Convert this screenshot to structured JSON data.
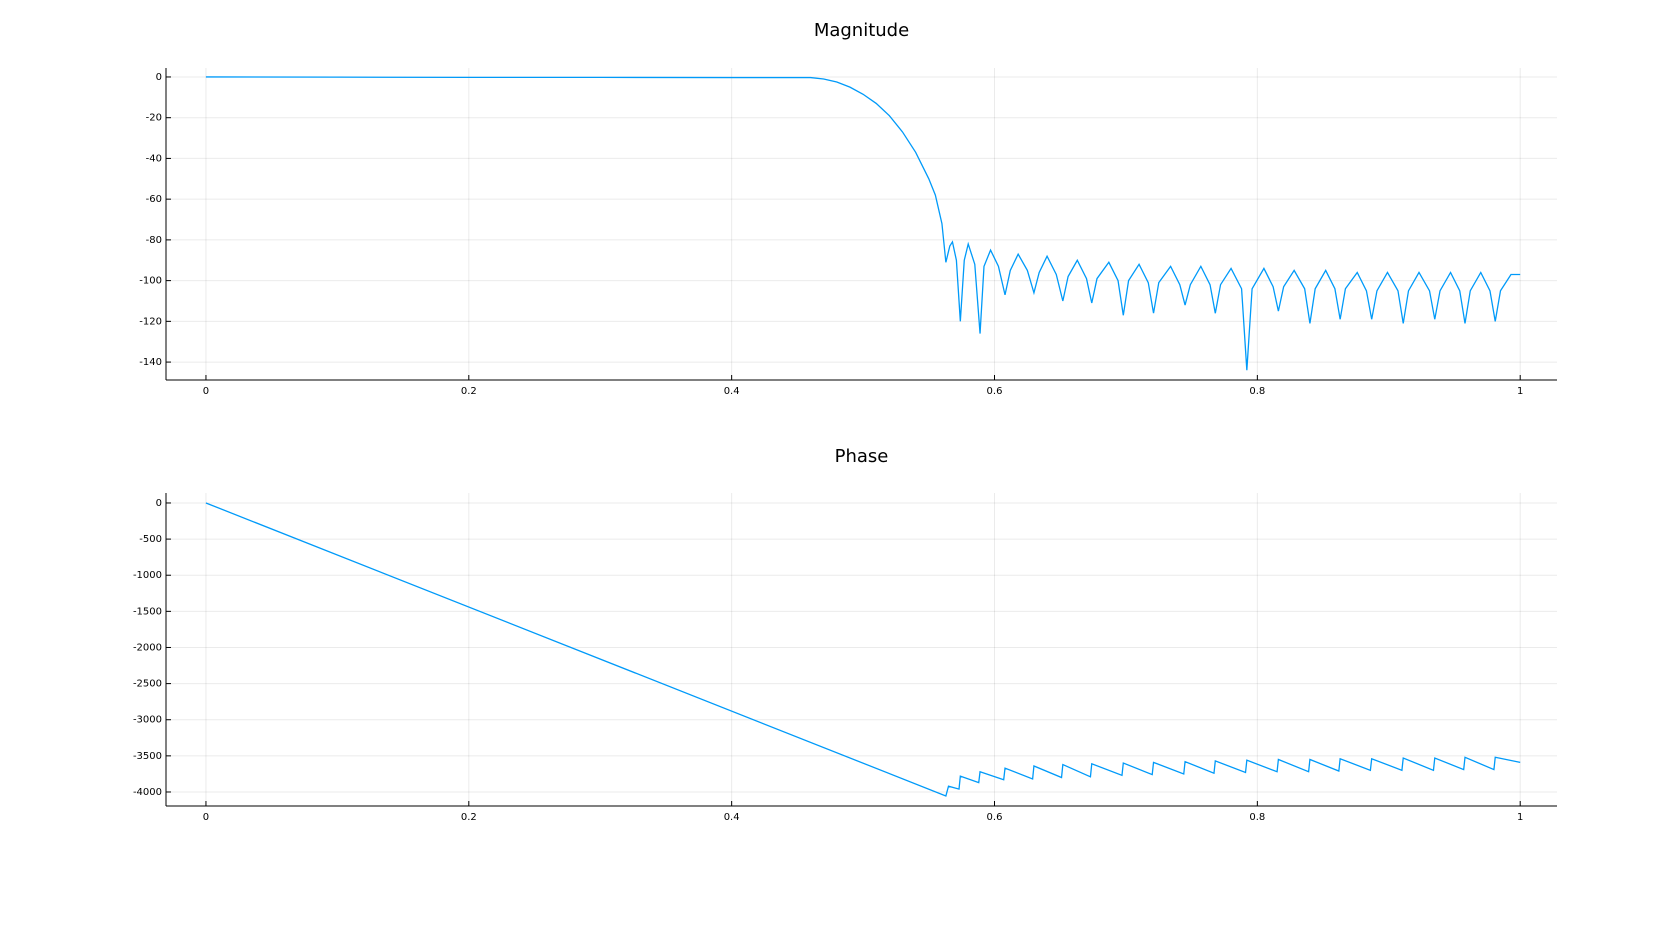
{
  "chart_data": [
    {
      "type": "line",
      "title": "Magnitude",
      "color": "#009af9",
      "grid": true,
      "xlim": [
        -0.0304,
        1.028
      ],
      "ylim": [
        -148.8,
        4.4
      ],
      "xticks": [
        0,
        0.2,
        0.4,
        0.6,
        0.8,
        1
      ],
      "yticks": [
        0,
        -20,
        -40,
        -60,
        -80,
        -100,
        -120,
        -140
      ],
      "x": [
        0,
        0.1,
        0.2,
        0.3,
        0.4,
        0.46,
        0.47,
        0.48,
        0.49,
        0.5,
        0.51,
        0.52,
        0.53,
        0.54,
        0.55,
        0.555,
        0.56,
        0.563,
        0.566,
        0.568,
        0.571,
        0.574,
        0.577,
        0.58,
        0.585,
        0.589,
        0.592,
        0.597,
        0.603,
        0.608,
        0.612,
        0.618,
        0.625,
        0.63,
        0.634,
        0.64,
        0.647,
        0.652,
        0.656,
        0.663,
        0.67,
        0.674,
        0.678,
        0.687,
        0.694,
        0.698,
        0.702,
        0.71,
        0.717,
        0.721,
        0.725,
        0.734,
        0.741,
        0.745,
        0.749,
        0.757,
        0.764,
        0.768,
        0.772,
        0.78,
        0.788,
        0.792,
        0.796,
        0.805,
        0.812,
        0.816,
        0.82,
        0.828,
        0.836,
        0.84,
        0.844,
        0.852,
        0.859,
        0.863,
        0.867,
        0.876,
        0.883,
        0.887,
        0.891,
        0.899,
        0.907,
        0.911,
        0.915,
        0.923,
        0.931,
        0.935,
        0.939,
        0.947,
        0.954,
        0.958,
        0.962,
        0.97,
        0.977,
        0.981,
        0.985,
        0.993,
        1.0
      ],
      "values": [
        0,
        -0.1,
        -0.2,
        -0.2,
        -0.3,
        -0.3,
        -1,
        -2.5,
        -5,
        -8.5,
        -13,
        -19,
        -27,
        -37,
        -50,
        -58,
        -72,
        -91,
        -83,
        -81,
        -90,
        -120,
        -90,
        -82,
        -92,
        -126,
        -93,
        -85,
        -93,
        -107,
        -95,
        -87,
        -95,
        -106,
        -96,
        -88,
        -97,
        -110,
        -98,
        -90,
        -99,
        -111,
        -99,
        -91,
        -100,
        -117,
        -100,
        -92,
        -101,
        -116,
        -101,
        -93,
        -102,
        -112,
        -102,
        -93,
        -102,
        -116,
        -102,
        -94,
        -104,
        -144,
        -104,
        -94,
        -103,
        -115,
        -103,
        -95,
        -104,
        -121,
        -104,
        -95,
        -104,
        -119,
        -104,
        -96,
        -105,
        -119,
        -105,
        -96,
        -105,
        -121,
        -105,
        -96,
        -105,
        -119,
        -105,
        -96,
        -105,
        -121,
        -105,
        -96,
        -105,
        -120,
        -105,
        -97,
        -97
      ]
    },
    {
      "type": "line",
      "title": "Phase",
      "color": "#009af9",
      "grid": true,
      "xlim": [
        -0.0304,
        1.028
      ],
      "ylim": [
        -4194,
        138
      ],
      "xticks": [
        0,
        0.2,
        0.4,
        0.6,
        0.8,
        1
      ],
      "yticks": [
        0,
        -500,
        -1000,
        -1500,
        -2000,
        -2500,
        -3000,
        -3500,
        -4000
      ],
      "x": [
        0,
        0.563,
        0.565,
        0.573,
        0.574,
        0.588,
        0.589,
        0.607,
        0.608,
        0.629,
        0.63,
        0.651,
        0.652,
        0.673,
        0.674,
        0.697,
        0.698,
        0.72,
        0.721,
        0.744,
        0.745,
        0.767,
        0.768,
        0.791,
        0.792,
        0.815,
        0.816,
        0.839,
        0.84,
        0.862,
        0.863,
        0.886,
        0.887,
        0.91,
        0.911,
        0.934,
        0.935,
        0.957,
        0.958,
        0.98,
        0.981,
        1.0
      ],
      "values": [
        0,
        -4055,
        -3920,
        -3960,
        -3780,
        -3870,
        -3720,
        -3830,
        -3670,
        -3820,
        -3640,
        -3800,
        -3620,
        -3790,
        -3610,
        -3770,
        -3600,
        -3760,
        -3590,
        -3750,
        -3580,
        -3740,
        -3570,
        -3730,
        -3560,
        -3720,
        -3550,
        -3720,
        -3550,
        -3710,
        -3540,
        -3700,
        -3540,
        -3700,
        -3530,
        -3700,
        -3530,
        -3690,
        -3520,
        -3690,
        -3520,
        -3590
      ]
    }
  ]
}
